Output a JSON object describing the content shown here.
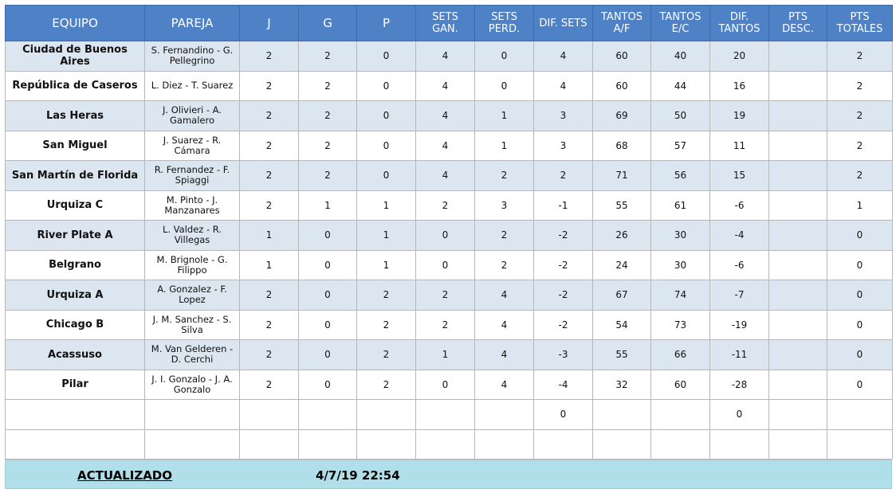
{
  "table": {
    "header": [
      "EQUIPO",
      "PAREJA",
      "J",
      "G",
      "P",
      "SETS\nGAN.",
      "SETS\nPERD.",
      "DIF. SETS",
      "TANTOS\nA/F",
      "TANTOS\nE/C",
      "DIF.\nTANTOS",
      "PTS\nDESC.",
      "PTS\nTOTALES"
    ],
    "rows": [
      [
        "Ciudad de Buenos Aires",
        "S. Fernandino - G. Pellegrino",
        2,
        2,
        0,
        4,
        0,
        4,
        60,
        40,
        20,
        null,
        2
      ],
      [
        "República de Caseros",
        "L. Diez - T. Suarez",
        2,
        2,
        0,
        4,
        0,
        4,
        60,
        44,
        16,
        null,
        2
      ],
      [
        "Las Heras",
        "J. Olivieri - A. Gamalero",
        2,
        2,
        0,
        4,
        1,
        3,
        69,
        50,
        19,
        null,
        2
      ],
      [
        "San Miguel",
        "J. Suarez - R. Cámara",
        2,
        2,
        0,
        4,
        1,
        3,
        68,
        57,
        11,
        null,
        2
      ],
      [
        "San Martín de Florida",
        "R. Fernandez - F. Spiaggi",
        2,
        2,
        0,
        4,
        2,
        2,
        71,
        56,
        15,
        null,
        2
      ],
      [
        "Urquiza C",
        "M. Pinto - J. Manzanares",
        2,
        1,
        1,
        2,
        3,
        -1,
        55,
        61,
        -6,
        null,
        1
      ],
      [
        "River Plate A",
        "L. Valdez - R. Villegas",
        1,
        0,
        1,
        0,
        2,
        -2,
        26,
        30,
        -4,
        null,
        0
      ],
      [
        "Belgrano",
        "M. Brignole - G. Filippo",
        1,
        0,
        1,
        0,
        2,
        -2,
        24,
        30,
        -6,
        null,
        0
      ],
      [
        "Urquiza A",
        "A. Gonzalez - F. Lopez",
        2,
        0,
        2,
        2,
        4,
        -2,
        67,
        74,
        -7,
        null,
        0
      ],
      [
        "Chicago B",
        "J. M. Sanchez - S. Silva",
        2,
        0,
        2,
        2,
        4,
        -2,
        54,
        73,
        -19,
        null,
        0
      ],
      [
        "Acassuso",
        "M. Van Gelderen - D. Cerchi",
        2,
        0,
        2,
        1,
        4,
        -3,
        55,
        66,
        -11,
        null,
        0
      ],
      [
        "Pilar",
        "J. I. Gonzalo - J. A. Gonzalo",
        2,
        0,
        2,
        0,
        4,
        -4,
        32,
        60,
        -28,
        null,
        0
      ],
      [
        null,
        null,
        null,
        null,
        null,
        null,
        null,
        0,
        null,
        null,
        0,
        null,
        null
      ],
      [
        null,
        null,
        null,
        null,
        null,
        null,
        null,
        null,
        null,
        null,
        null,
        null,
        null
      ]
    ]
  },
  "footer": {
    "label": "ACTUALIZADO",
    "date": "4/7/19 22:54"
  }
}
